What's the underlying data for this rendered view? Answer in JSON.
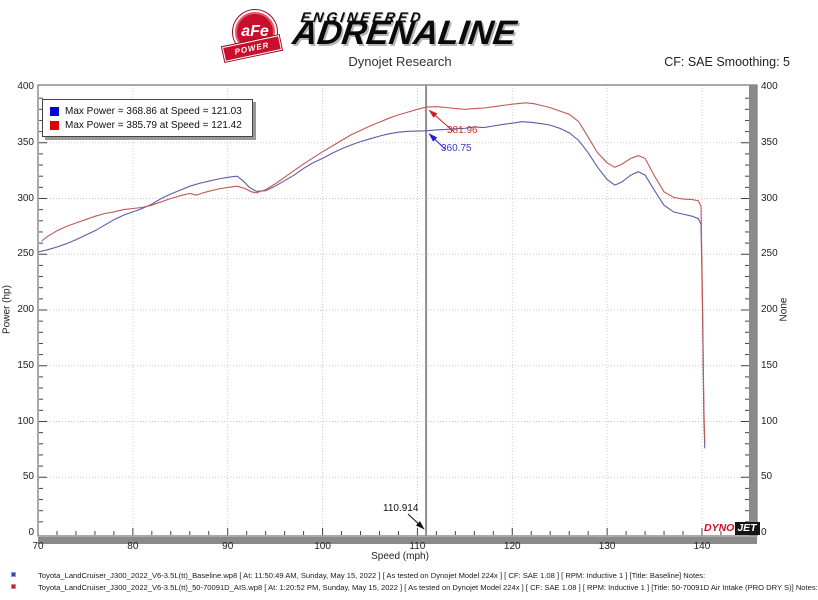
{
  "header": {
    "badge_text": "aFe",
    "badge_sub": "POWER",
    "brand_line1": "ENGINEERED",
    "brand_line2": "ADRENALINE",
    "title": "Dynojet Research",
    "smoothing": "CF: SAE Smoothing: 5"
  },
  "chart_data": {
    "type": "line",
    "title": "Dynojet Research",
    "xlabel": "Speed (mph)",
    "ylabel": "Power (hp)",
    "ylabel_right": "None",
    "xlim": [
      70,
      145.8
    ],
    "ylim": [
      0,
      400
    ],
    "x_ticks": [
      70,
      80,
      90,
      100,
      110,
      120,
      130,
      140
    ],
    "x_minor_step": 2,
    "y_ticks": [
      0,
      50,
      100,
      150,
      200,
      250,
      300,
      350,
      400
    ],
    "y_minor_step": 10,
    "grid": "dotted",
    "legend_position": "top-left",
    "legend": [
      {
        "color": "#0000d8",
        "label": "Max Power = 368.86 at Speed = 121.03"
      },
      {
        "color": "#e00000",
        "label": "Max Power = 385.79 at Speed = 121.42"
      }
    ],
    "cursor": {
      "x": 110.914,
      "x_label": "110.914",
      "red_value": 381.96,
      "red_label": "381.96",
      "blue_value": 360.75,
      "blue_label": "360.75"
    },
    "series": [
      {
        "name": "Baseline",
        "color": "#5c5cab",
        "max_power": 368.86,
        "max_power_speed": 121.03,
        "points": [
          [
            70,
            252
          ],
          [
            71,
            254
          ],
          [
            72,
            256.5
          ],
          [
            73,
            259.5
          ],
          [
            74,
            263
          ],
          [
            75,
            267
          ],
          [
            76,
            271
          ],
          [
            77,
            276
          ],
          [
            78,
            281
          ],
          [
            79,
            285
          ],
          [
            80,
            288
          ],
          [
            81,
            291
          ],
          [
            82,
            295
          ],
          [
            83,
            300
          ],
          [
            84,
            304
          ],
          [
            85,
            307.5
          ],
          [
            86,
            311
          ],
          [
            87,
            313.5
          ],
          [
            88,
            315.5
          ],
          [
            89,
            317.5
          ],
          [
            90,
            319
          ],
          [
            91,
            320
          ],
          [
            91.6,
            316
          ],
          [
            92.3,
            310
          ],
          [
            93,
            306.5
          ],
          [
            94,
            307
          ],
          [
            95,
            311
          ],
          [
            96,
            316
          ],
          [
            97,
            321
          ],
          [
            98,
            327
          ],
          [
            99,
            332
          ],
          [
            100,
            336
          ],
          [
            101,
            340.5
          ],
          [
            102,
            344.5
          ],
          [
            103,
            348
          ],
          [
            104,
            351
          ],
          [
            105,
            353.5
          ],
          [
            106,
            356
          ],
          [
            107,
            358
          ],
          [
            108,
            359.5
          ],
          [
            109,
            360.3
          ],
          [
            110.914,
            360.75
          ],
          [
            112,
            361.5
          ],
          [
            113,
            362
          ],
          [
            114,
            362.5
          ],
          [
            115,
            363
          ],
          [
            116,
            364.2
          ],
          [
            117,
            363.6
          ],
          [
            118,
            365
          ],
          [
            119,
            366.5
          ],
          [
            120,
            367.5
          ],
          [
            121.03,
            368.86
          ],
          [
            122,
            368.3
          ],
          [
            123,
            367.2
          ],
          [
            124,
            365.8
          ],
          [
            125,
            363
          ],
          [
            126,
            359
          ],
          [
            127,
            352
          ],
          [
            128,
            341
          ],
          [
            129,
            328
          ],
          [
            130,
            317
          ],
          [
            130.8,
            312
          ],
          [
            131.5,
            314.5
          ],
          [
            132.5,
            321
          ],
          [
            133.3,
            324
          ],
          [
            134,
            321
          ],
          [
            135,
            307
          ],
          [
            136,
            294
          ],
          [
            137,
            288
          ],
          [
            138,
            286
          ],
          [
            139,
            284
          ],
          [
            139.6,
            282
          ],
          [
            139.9,
            277
          ],
          [
            140.05,
            200
          ],
          [
            140.2,
            100
          ],
          [
            140.3,
            76
          ]
        ]
      },
      {
        "name": "50-70091D Air Intake (PRO DRY S)",
        "color": "#c05a54",
        "max_power": 385.79,
        "max_power_speed": 121.42,
        "points": [
          [
            70.4,
            262
          ],
          [
            71,
            266
          ],
          [
            72,
            271
          ],
          [
            73,
            275
          ],
          [
            74,
            278
          ],
          [
            75,
            281
          ],
          [
            76,
            284
          ],
          [
            77,
            286.5
          ],
          [
            78,
            288
          ],
          [
            79,
            290
          ],
          [
            80,
            291
          ],
          [
            81,
            292
          ],
          [
            82,
            294
          ],
          [
            83,
            297
          ],
          [
            84,
            300
          ],
          [
            85,
            302.5
          ],
          [
            86,
            304.5
          ],
          [
            86.7,
            303
          ],
          [
            87.4,
            305
          ],
          [
            88,
            306.5
          ],
          [
            89,
            308.5
          ],
          [
            90,
            310
          ],
          [
            91,
            311
          ],
          [
            91.8,
            309
          ],
          [
            92.5,
            306
          ],
          [
            93,
            305
          ],
          [
            94,
            308
          ],
          [
            95,
            313
          ],
          [
            96,
            319
          ],
          [
            97,
            325
          ],
          [
            98,
            331
          ],
          [
            99,
            336.5
          ],
          [
            100,
            342
          ],
          [
            101,
            347
          ],
          [
            102,
            352
          ],
          [
            103,
            357
          ],
          [
            104,
            361
          ],
          [
            105,
            365
          ],
          [
            106,
            368.5
          ],
          [
            107,
            372
          ],
          [
            108,
            375
          ],
          [
            109,
            377.5
          ],
          [
            110,
            380
          ],
          [
            110.914,
            381.96
          ],
          [
            112,
            382.3
          ],
          [
            113,
            381.6
          ],
          [
            114,
            380.6
          ],
          [
            115,
            380
          ],
          [
            116,
            380.6
          ],
          [
            117,
            381.2
          ],
          [
            118,
            382.2
          ],
          [
            119,
            383.5
          ],
          [
            120,
            384.6
          ],
          [
            121.42,
            385.79
          ],
          [
            122.3,
            385
          ],
          [
            123,
            383.5
          ],
          [
            124,
            381.5
          ],
          [
            125,
            378.5
          ],
          [
            126,
            375.5
          ],
          [
            127,
            369
          ],
          [
            128,
            355
          ],
          [
            129,
            341
          ],
          [
            130,
            332
          ],
          [
            130.8,
            328
          ],
          [
            131.5,
            330.5
          ],
          [
            132.5,
            336
          ],
          [
            133.3,
            338.5
          ],
          [
            134,
            336
          ],
          [
            135,
            320
          ],
          [
            136,
            306
          ],
          [
            137,
            301
          ],
          [
            138,
            299.5
          ],
          [
            139,
            299
          ],
          [
            139.6,
            298
          ],
          [
            139.9,
            293
          ],
          [
            140.05,
            210
          ],
          [
            140.2,
            110
          ],
          [
            140.3,
            82
          ]
        ]
      }
    ],
    "watermark": {
      "part1": "DYNO",
      "part2": "JET"
    }
  },
  "footer": {
    "lines": [
      {
        "bullet_color": "#3344bb",
        "text": "Toyota_LandCruiser_J300_2022_V6-3.5L(tt)_Baseline.wp8 [ At: 11:50:49 AM, Sunday, May 15, 2022 ] [ As tested on Dynojet Model 224x ] [ CF: SAE 1.08 ] [ RPM: Inductive 1 ] [Title: Baseline]  Notes:"
      },
      {
        "bullet_color": "#bb2222",
        "text": "Toyota_LandCruiser_J300_2022_V6-3.5L(tt)_50-70091D_AIS.wp8 [ At: 1:20:52 PM, Sunday, May 15, 2022 ] [ As tested on Dynojet Model 224x ] [ CF: SAE 1.08 ] [ RPM: Inductive 1 ] [Title: 50-70091D Air Intake (PRO DRY S)]  Notes:"
      }
    ]
  }
}
